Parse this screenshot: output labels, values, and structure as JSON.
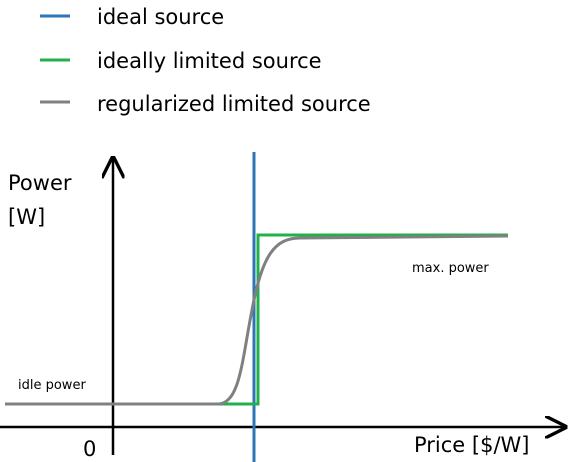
{
  "legend": [
    {
      "label": "ideal source"
    },
    {
      "label": "ideally limited source"
    },
    {
      "label": "regularized limited source"
    }
  ],
  "y_axis": {
    "label_line1": "Power",
    "label_line2": "[W]"
  },
  "x_axis": {
    "label": "Price [$/W]",
    "origin": "0"
  },
  "annotations": {
    "max": "max. power",
    "idle": "idle power"
  }
}
